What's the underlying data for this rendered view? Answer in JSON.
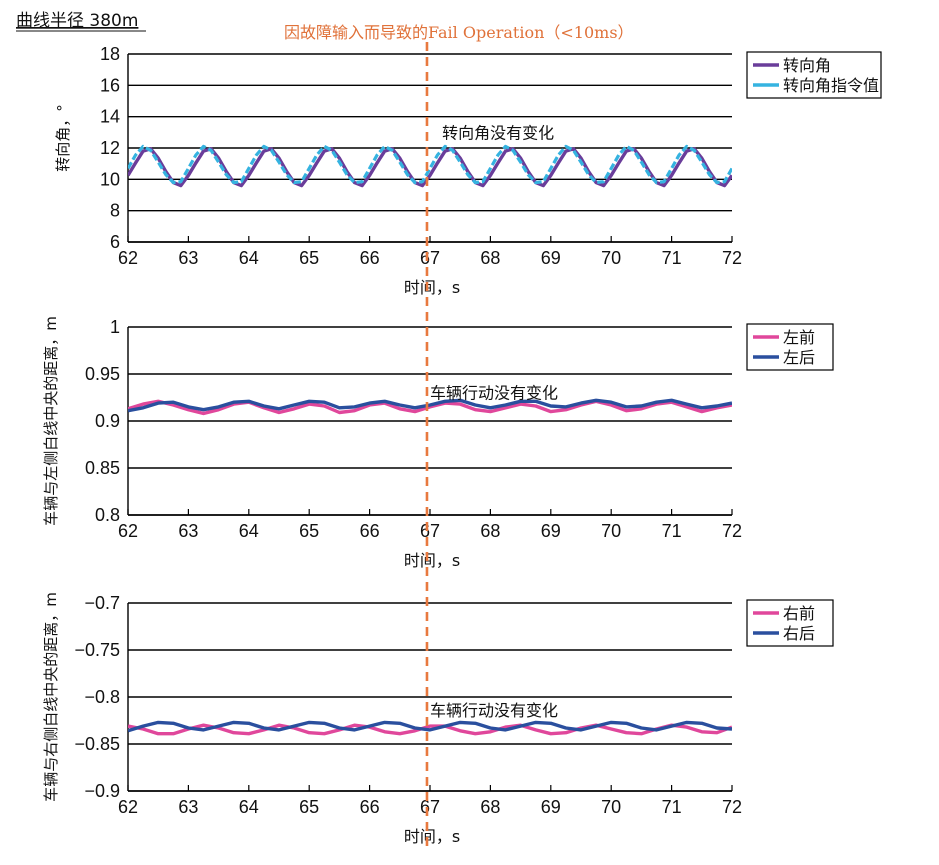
{
  "figure": {
    "title": "曲线半径 380m",
    "fault_label": "因故障输入而导致的Fail Operation（<10ms）",
    "fault_time": 66.95,
    "fault_color": "#e8793f"
  },
  "chart_data": [
    {
      "type": "line",
      "name": "steering",
      "xlabel": "时间，s",
      "ylabel": "转向角，°",
      "xlim": [
        62,
        72
      ],
      "ylim": [
        6,
        18
      ],
      "xticks": [
        "62",
        "63",
        "64",
        "65",
        "66",
        "67",
        "68",
        "69",
        "70",
        "71",
        "72"
      ],
      "yticks": [
        "6",
        "8",
        "10",
        "12",
        "14",
        "16",
        "18"
      ],
      "grid": "horizontal",
      "legend_position": "top-right",
      "annotation": {
        "text": "转向角没有变化",
        "x": 67.2,
        "y": 12.6
      },
      "series": [
        {
          "name": "转向角",
          "color": "#6a3d9a",
          "dashed": false,
          "x": [
            62,
            62.125,
            62.25,
            62.375,
            62.5,
            62.625,
            62.75,
            62.875,
            63,
            63.125,
            63.25,
            63.375,
            63.5,
            63.625,
            63.75,
            63.875,
            64,
            64.125,
            64.25,
            64.375,
            64.5,
            64.625,
            64.75,
            64.875,
            65,
            65.125,
            65.25,
            65.375,
            65.5,
            65.625,
            65.75,
            65.875,
            66,
            66.125,
            66.25,
            66.375,
            66.5,
            66.625,
            66.75,
            66.875,
            67,
            67.125,
            67.25,
            67.375,
            67.5,
            67.625,
            67.75,
            67.875,
            68,
            68.125,
            68.25,
            68.375,
            68.5,
            68.625,
            68.75,
            68.875,
            69,
            69.125,
            69.25,
            69.375,
            69.5,
            69.625,
            69.75,
            69.875,
            70,
            70.125,
            70.25,
            70.375,
            70.5,
            70.625,
            70.75,
            70.875,
            71,
            71.125,
            71.25,
            71.375,
            71.5,
            71.625,
            71.75,
            71.875,
            72
          ],
          "y": [
            10.25,
            11.05,
            11.8,
            11.95,
            11.35,
            10.5,
            9.8,
            9.6,
            10.25,
            11.05,
            11.8,
            11.95,
            11.35,
            10.5,
            9.8,
            9.6,
            10.25,
            11.05,
            11.8,
            11.95,
            11.35,
            10.5,
            9.8,
            9.6,
            10.25,
            11.05,
            11.8,
            11.95,
            11.35,
            10.5,
            9.8,
            9.6,
            10.25,
            11.05,
            11.8,
            11.95,
            11.35,
            10.5,
            9.8,
            9.6,
            10.25,
            11.05,
            11.8,
            11.95,
            11.35,
            10.5,
            9.8,
            9.6,
            10.25,
            11.05,
            11.8,
            11.95,
            11.35,
            10.5,
            9.8,
            9.6,
            10.25,
            11.05,
            11.8,
            11.95,
            11.35,
            10.5,
            9.8,
            9.6,
            10.25,
            11.05,
            11.8,
            11.95,
            11.35,
            10.5,
            9.8,
            9.6,
            10.25,
            11.05,
            11.8,
            11.95,
            11.35,
            10.5,
            9.8,
            9.6,
            10.25
          ]
        },
        {
          "name": "转向角指令值",
          "color": "#35b3e0",
          "dashed": true,
          "x": [
            62,
            62.125,
            62.25,
            62.375,
            62.5,
            62.625,
            62.75,
            62.875,
            63,
            63.125,
            63.25,
            63.375,
            63.5,
            63.625,
            63.75,
            63.875,
            64,
            64.125,
            64.25,
            64.375,
            64.5,
            64.625,
            64.75,
            64.875,
            65,
            65.125,
            65.25,
            65.375,
            65.5,
            65.625,
            65.75,
            65.875,
            66,
            66.125,
            66.25,
            66.375,
            66.5,
            66.625,
            66.75,
            66.875,
            67,
            67.125,
            67.25,
            67.375,
            67.5,
            67.625,
            67.75,
            67.875,
            68,
            68.125,
            68.25,
            68.375,
            68.5,
            68.625,
            68.75,
            68.875,
            69,
            69.125,
            69.25,
            69.375,
            69.5,
            69.625,
            69.75,
            69.875,
            70,
            70.125,
            70.25,
            70.375,
            70.5,
            70.625,
            70.75,
            70.875,
            71,
            71.125,
            71.25,
            71.375,
            71.5,
            71.625,
            71.75,
            71.875,
            72
          ],
          "y": [
            10.7,
            11.55,
            12.1,
            11.85,
            11.1,
            10.3,
            9.8,
            9.85,
            10.7,
            11.55,
            12.1,
            11.85,
            11.1,
            10.3,
            9.8,
            9.85,
            10.7,
            11.55,
            12.1,
            11.85,
            11.1,
            10.3,
            9.8,
            9.85,
            10.7,
            11.55,
            12.1,
            11.85,
            11.1,
            10.3,
            9.8,
            9.85,
            10.7,
            11.55,
            12.1,
            11.85,
            11.1,
            10.3,
            9.8,
            9.85,
            10.7,
            11.55,
            12.1,
            11.85,
            11.1,
            10.3,
            9.8,
            9.85,
            10.7,
            11.55,
            12.1,
            11.85,
            11.1,
            10.3,
            9.8,
            9.85,
            10.7,
            11.55,
            12.1,
            11.85,
            11.1,
            10.3,
            9.8,
            9.85,
            10.7,
            11.55,
            12.1,
            11.85,
            11.1,
            10.3,
            9.8,
            9.85,
            10.7,
            11.55,
            12.1,
            11.85,
            11.1,
            10.3,
            9.8,
            9.85,
            10.7
          ]
        }
      ]
    },
    {
      "type": "line",
      "name": "left-distance",
      "xlabel": "时间，s",
      "ylabel": "车辆与左侧白线中央的距离，m",
      "xlim": [
        62,
        72
      ],
      "ylim": [
        0.8,
        1
      ],
      "xticks": [
        "62",
        "63",
        "64",
        "65",
        "66",
        "67",
        "68",
        "69",
        "70",
        "71",
        "72"
      ],
      "yticks": [
        "0.8",
        "0.85",
        "0.9",
        "0.95",
        "1"
      ],
      "grid": "horizontal",
      "legend_position": "top-right",
      "annotation": {
        "text": "车辆行动没有变化",
        "x": 67.0,
        "y": 0.924
      },
      "series": [
        {
          "name": "左前",
          "color": "#e0479b",
          "dashed": false,
          "x": [
            62,
            62.25,
            62.5,
            62.75,
            63,
            63.25,
            63.5,
            63.75,
            64,
            64.25,
            64.5,
            64.75,
            65,
            65.25,
            65.5,
            65.75,
            66,
            66.25,
            66.5,
            66.75,
            67,
            67.25,
            67.5,
            67.75,
            68,
            68.25,
            68.5,
            68.75,
            69,
            69.25,
            69.5,
            69.75,
            70,
            70.25,
            70.5,
            70.75,
            71,
            71.25,
            71.5,
            71.75,
            72
          ],
          "y": [
            0.913,
            0.918,
            0.921,
            0.917,
            0.912,
            0.908,
            0.912,
            0.918,
            0.92,
            0.914,
            0.909,
            0.913,
            0.918,
            0.916,
            0.909,
            0.911,
            0.917,
            0.919,
            0.913,
            0.91,
            0.915,
            0.919,
            0.918,
            0.912,
            0.91,
            0.914,
            0.918,
            0.916,
            0.91,
            0.912,
            0.917,
            0.921,
            0.917,
            0.911,
            0.913,
            0.918,
            0.92,
            0.915,
            0.91,
            0.914,
            0.917
          ]
        },
        {
          "name": "左后",
          "color": "#2a4f9e",
          "dashed": false,
          "x": [
            62,
            62.25,
            62.5,
            62.75,
            63,
            63.25,
            63.5,
            63.75,
            64,
            64.25,
            64.5,
            64.75,
            65,
            65.25,
            65.5,
            65.75,
            66,
            66.25,
            66.5,
            66.75,
            67,
            67.25,
            67.5,
            67.75,
            68,
            68.25,
            68.5,
            68.75,
            69,
            69.25,
            69.5,
            69.75,
            70,
            70.25,
            70.5,
            70.75,
            71,
            71.25,
            71.5,
            71.75,
            72
          ],
          "y": [
            0.911,
            0.914,
            0.919,
            0.92,
            0.915,
            0.912,
            0.915,
            0.92,
            0.921,
            0.916,
            0.913,
            0.917,
            0.921,
            0.92,
            0.914,
            0.915,
            0.919,
            0.921,
            0.917,
            0.914,
            0.917,
            0.921,
            0.922,
            0.917,
            0.914,
            0.917,
            0.921,
            0.921,
            0.916,
            0.915,
            0.919,
            0.922,
            0.92,
            0.915,
            0.916,
            0.92,
            0.922,
            0.918,
            0.914,
            0.916,
            0.919
          ]
        }
      ]
    },
    {
      "type": "line",
      "name": "right-distance",
      "xlabel": "时间，s",
      "ylabel": "车辆与右侧白线中央的距离，m",
      "xlim": [
        62,
        72
      ],
      "ylim": [
        -0.9,
        -0.7
      ],
      "xticks": [
        "62",
        "63",
        "64",
        "65",
        "66",
        "67",
        "68",
        "69",
        "70",
        "71",
        "72"
      ],
      "yticks": [
        "−0.9",
        "−0.85",
        "−0.8",
        "−0.75",
        "−0.7"
      ],
      "grid": "horizontal",
      "legend_position": "top-right",
      "annotation": {
        "text": "车辆行动没有变化",
        "x": 67.0,
        "y": -0.82
      },
      "series": [
        {
          "name": "右前",
          "color": "#e0479b",
          "dashed": false,
          "x": [
            62,
            62.25,
            62.5,
            62.75,
            63,
            63.25,
            63.5,
            63.75,
            64,
            64.25,
            64.5,
            64.75,
            65,
            65.25,
            65.5,
            65.75,
            66,
            66.25,
            66.5,
            66.75,
            67,
            67.25,
            67.5,
            67.75,
            68,
            68.25,
            68.5,
            68.75,
            69,
            69.25,
            69.5,
            69.75,
            70,
            70.25,
            70.5,
            70.75,
            71,
            71.25,
            71.5,
            71.75,
            72
          ],
          "y": [
            -0.831,
            -0.834,
            -0.839,
            -0.839,
            -0.834,
            -0.83,
            -0.833,
            -0.838,
            -0.839,
            -0.835,
            -0.83,
            -0.833,
            -0.838,
            -0.839,
            -0.835,
            -0.83,
            -0.832,
            -0.837,
            -0.839,
            -0.836,
            -0.831,
            -0.831,
            -0.836,
            -0.839,
            -0.837,
            -0.832,
            -0.83,
            -0.835,
            -0.839,
            -0.838,
            -0.833,
            -0.83,
            -0.834,
            -0.838,
            -0.839,
            -0.834,
            -0.83,
            -0.832,
            -0.837,
            -0.838,
            -0.832
          ]
        },
        {
          "name": "右后",
          "color": "#2a4f9e",
          "dashed": false,
          "x": [
            62,
            62.25,
            62.5,
            62.75,
            63,
            63.25,
            63.5,
            63.75,
            64,
            64.25,
            64.5,
            64.75,
            65,
            65.25,
            65.5,
            65.75,
            66,
            66.25,
            66.5,
            66.75,
            67,
            67.25,
            67.5,
            67.75,
            68,
            68.25,
            68.5,
            68.75,
            69,
            69.25,
            69.5,
            69.75,
            70,
            70.25,
            70.5,
            70.75,
            71,
            71.25,
            71.5,
            71.75,
            72
          ],
          "y": [
            -0.836,
            -0.831,
            -0.827,
            -0.828,
            -0.833,
            -0.835,
            -0.831,
            -0.827,
            -0.828,
            -0.833,
            -0.835,
            -0.831,
            -0.827,
            -0.828,
            -0.833,
            -0.835,
            -0.831,
            -0.827,
            -0.828,
            -0.833,
            -0.835,
            -0.831,
            -0.827,
            -0.828,
            -0.833,
            -0.835,
            -0.831,
            -0.827,
            -0.828,
            -0.833,
            -0.835,
            -0.831,
            -0.827,
            -0.828,
            -0.833,
            -0.835,
            -0.831,
            -0.827,
            -0.828,
            -0.833,
            -0.834
          ]
        }
      ]
    }
  ]
}
